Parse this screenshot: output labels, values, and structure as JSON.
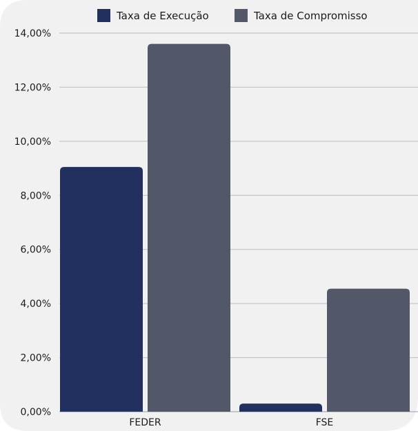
{
  "chart_data": {
    "type": "bar",
    "categories": [
      "FEDER",
      "FSE"
    ],
    "series": [
      {
        "name": "Taxa de Execução",
        "values": [
          9.05,
          0.3
        ],
        "color": "#21305f"
      },
      {
        "name": "Taxa de Compromisso",
        "values": [
          13.6,
          4.55
        ],
        "color": "#525868"
      }
    ],
    "ylim": [
      0,
      14
    ],
    "yticks": [
      0,
      2,
      4,
      6,
      8,
      10,
      12,
      14
    ],
    "ytick_labels": [
      "0,00%",
      "2,00%",
      "4,00%",
      "6,00%",
      "8,00%",
      "10,00%",
      "12,00%",
      "14,00%"
    ],
    "grid": true,
    "legend": "top-center",
    "title": "",
    "xlabel": "",
    "ylabel": ""
  },
  "colors": {
    "panel": "#f1f1f2",
    "grid": "#b9bcc2"
  }
}
